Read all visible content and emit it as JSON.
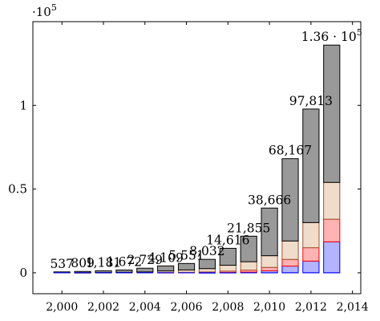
{
  "chart_data": {
    "type": "bar",
    "stacked": true,
    "x": [
      2000,
      2001,
      2002,
      2003,
      2004,
      2005,
      2006,
      2007,
      2008,
      2009,
      2010,
      2011,
      2012,
      2013
    ],
    "totals": [
      537,
      809,
      1181,
      1672,
      2729,
      4109,
      5551,
      8032,
      14616,
      21855,
      38666,
      68167,
      97813,
      136000
    ],
    "series": [
      {
        "color": "#b3b3ff",
        "stroke": "#0000ff",
        "values": [
          0,
          0,
          0,
          0,
          0,
          0,
          0,
          100,
          200,
          400,
          1200,
          4000,
          7000,
          18500
        ]
      },
      {
        "color": "#ffb3b3",
        "stroke": "#ff0000",
        "values": [
          0,
          0,
          0,
          0,
          0,
          200,
          300,
          400,
          800,
          1200,
          2000,
          4000,
          8000,
          13500
        ]
      },
      {
        "color": "#f0dccb",
        "stroke": "#a0522d",
        "values": [
          0,
          100,
          200,
          300,
          500,
          900,
          1400,
          2000,
          3500,
          5000,
          7000,
          11000,
          15000,
          22000
        ]
      },
      {
        "color": "#999999",
        "stroke": "#000000",
        "values": [
          537,
          709,
          981,
          1372,
          2229,
          3009,
          3851,
          5532,
          10116,
          15255,
          28466,
          49167,
          67813,
          82000
        ]
      }
    ],
    "total_labels": [
      "537",
      "809",
      "1,181",
      "1,672",
      "2,729",
      "4,109",
      "5,551",
      "8,032",
      "14,616",
      "21,855",
      "38,666",
      "68,167",
      "97,813",
      "1.36 · 10"
    ],
    "total_label_exponent_last": "5",
    "x_ticks": [
      2000,
      2002,
      2004,
      2006,
      2008,
      2010,
      2012,
      2014
    ],
    "x_tick_labels": [
      "2,000",
      "2,002",
      "2,004",
      "2,006",
      "2,008",
      "2,010",
      "2,012",
      "2,014"
    ],
    "y_ticks": [
      0,
      50000,
      100000
    ],
    "y_tick_labels": [
      "0",
      "0.5",
      "1"
    ],
    "y_scale_label": "·10",
    "y_scale_exponent": "5",
    "xlim": [
      1998.6,
      2014.4
    ],
    "ylim": [
      -12500,
      150000
    ],
    "grid": false
  }
}
